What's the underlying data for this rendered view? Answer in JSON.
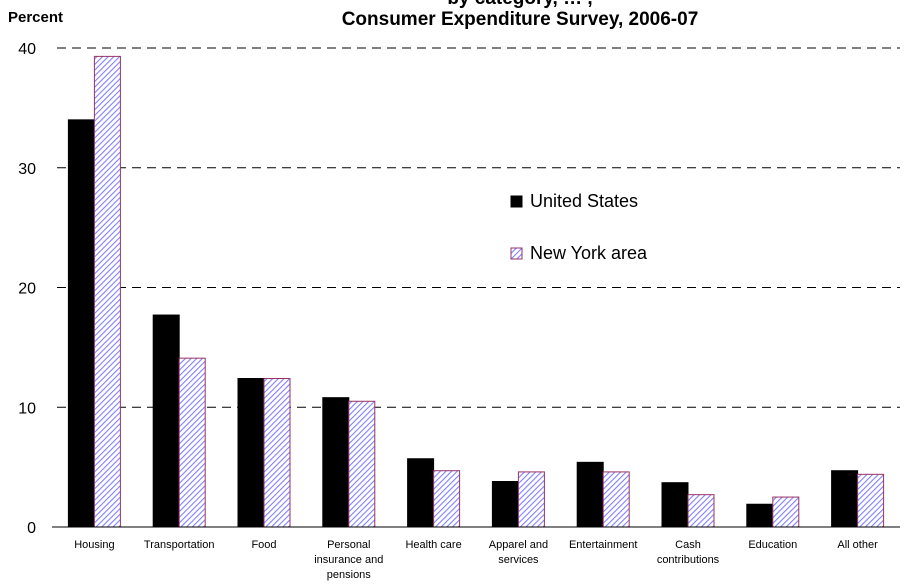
{
  "chart_data": {
    "type": "bar",
    "title_partial": "by category, … ,",
    "title": "Consumer Expenditure Survey, 2006-07",
    "ylabel": "Percent",
    "xlabel": "",
    "ylim": [
      0,
      40
    ],
    "yticks": [
      0,
      10,
      20,
      30,
      40
    ],
    "grid": "dashed horizontal",
    "legend_position": "center-right",
    "categories": [
      [
        "Housing"
      ],
      [
        "Transportation"
      ],
      [
        "Food"
      ],
      [
        "Personal",
        "insurance and",
        "pensions"
      ],
      [
        "Health care"
      ],
      [
        "Apparel and",
        "services"
      ],
      [
        "Entertainment"
      ],
      [
        "Cash",
        "contributions"
      ],
      [
        "Education"
      ],
      [
        "All other"
      ]
    ],
    "series": [
      {
        "name": "United States",
        "color": "#000000",
        "pattern": "solid",
        "values": [
          34.0,
          17.7,
          12.4,
          10.8,
          5.7,
          3.8,
          5.4,
          3.7,
          1.9,
          4.7
        ]
      },
      {
        "name": "New York area",
        "color": "#9999ff",
        "border": "#993366",
        "pattern": "diagonal-hatch",
        "values": [
          39.3,
          14.1,
          12.4,
          10.5,
          4.7,
          4.6,
          4.6,
          2.7,
          2.5,
          4.4
        ]
      }
    ]
  }
}
